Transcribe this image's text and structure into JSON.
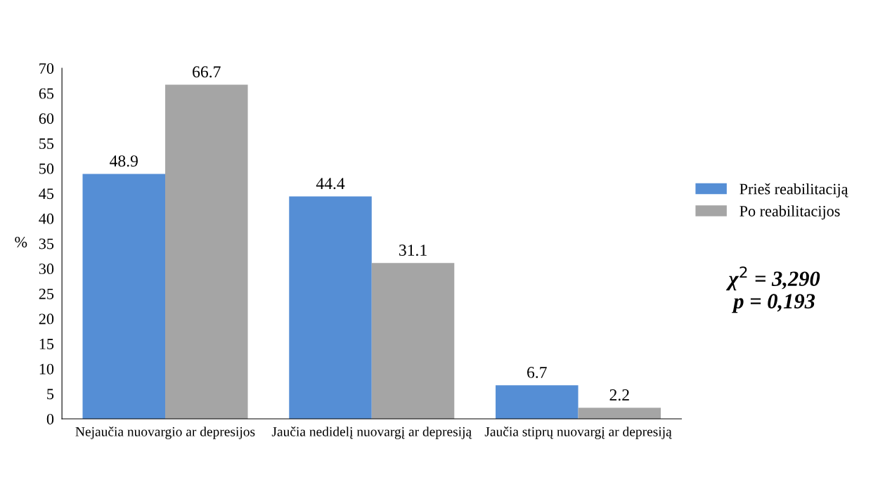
{
  "chart_data": {
    "type": "bar",
    "ylabel": "%",
    "categories": [
      "Nejaučia nuovargio ar depresijos",
      "Jaučia nedidelį nuovargį ar depresiją",
      "Jaučia stiprų nuovargį ar depresiją"
    ],
    "series": [
      {
        "name": "Prieš reabilitaciją",
        "color": "#558ed5",
        "values": [
          48.9,
          44.4,
          6.7
        ]
      },
      {
        "name": "Po reabilitacijos",
        "color": "#a5a5a5",
        "values": [
          66.7,
          31.1,
          2.2
        ]
      }
    ],
    "ylim": [
      0,
      70
    ],
    "yticks": [
      0,
      5,
      10,
      15,
      20,
      25,
      30,
      35,
      40,
      45,
      50,
      55,
      60,
      65,
      70
    ],
    "data_labels": true,
    "grid": false,
    "legend": "right",
    "annotations": [
      "χ$^{2}$ = 3,290",
      "p = 0,193"
    ]
  }
}
